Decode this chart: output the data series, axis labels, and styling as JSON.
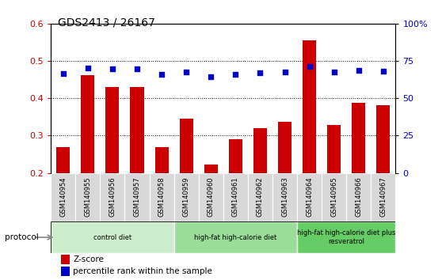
{
  "title": "GDS2413 / 26167",
  "samples": [
    "GSM140954",
    "GSM140955",
    "GSM140956",
    "GSM140957",
    "GSM140958",
    "GSM140959",
    "GSM140960",
    "GSM140961",
    "GSM140962",
    "GSM140963",
    "GSM140964",
    "GSM140965",
    "GSM140966",
    "GSM140967"
  ],
  "zscore": [
    0.27,
    0.462,
    0.43,
    0.43,
    0.27,
    0.345,
    0.222,
    0.29,
    0.32,
    0.338,
    0.555,
    0.328,
    0.388,
    0.382
  ],
  "percentile": [
    66.5,
    70.5,
    70.0,
    70.0,
    66.0,
    67.5,
    64.5,
    66.0,
    67.0,
    67.5,
    71.5,
    67.5,
    68.5,
    68.0
  ],
  "bar_color": "#cc0000",
  "dot_color": "#0000cc",
  "ylim_left": [
    0.2,
    0.6
  ],
  "yticks_left": [
    0.2,
    0.3,
    0.4,
    0.5,
    0.6
  ],
  "ylim_right": [
    0,
    100
  ],
  "yticks_right": [
    0,
    25,
    50,
    75,
    100
  ],
  "yticks_right_labels": [
    "0",
    "25",
    "50",
    "75",
    "100%"
  ],
  "groups": [
    {
      "label": "control diet",
      "start": 0,
      "end": 4,
      "color": "#cceecc"
    },
    {
      "label": "high-fat high-calorie diet",
      "start": 5,
      "end": 9,
      "color": "#99dd99"
    },
    {
      "label": "high-fat high-calorie diet plus\nresveratrol",
      "start": 10,
      "end": 13,
      "color": "#66cc66"
    }
  ],
  "protocol_label": "protocol",
  "legend_zscore": "Z-score",
  "legend_percentile": "percentile rank within the sample",
  "background_color": "#ffffff",
  "tick_label_color_left": "#cc0000",
  "tick_label_color_right": "#0000cc",
  "xlabel_bg": "#cccccc",
  "title_fontsize": 10
}
